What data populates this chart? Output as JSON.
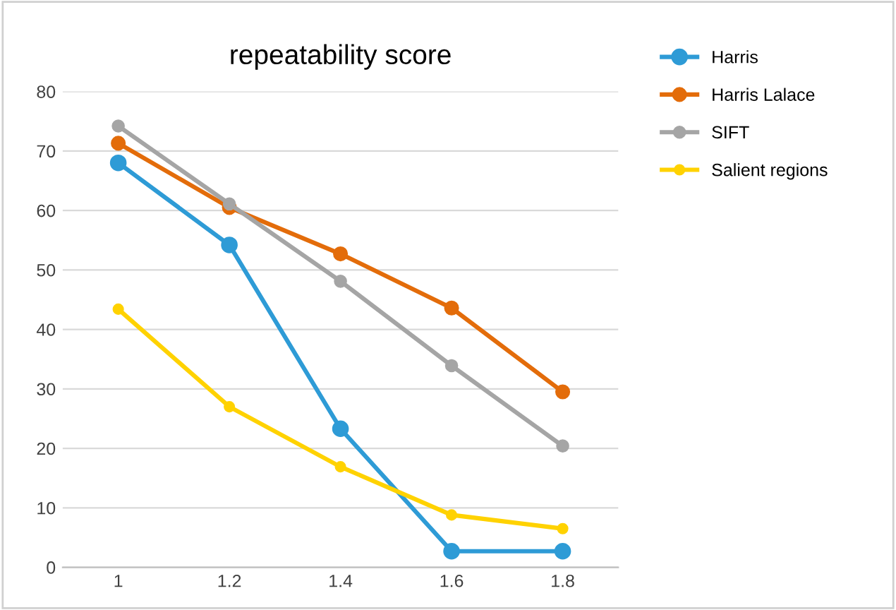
{
  "chart_data": {
    "type": "line",
    "title": "repeatability score",
    "categories": [
      "1",
      "1.2",
      "1.4",
      "1.6",
      "1.8"
    ],
    "series": [
      {
        "name": "Harris",
        "color": "#2e9bd6",
        "values": [
          68,
          54.2,
          23.3,
          2.7,
          2.7
        ]
      },
      {
        "name": "Harris Lalace",
        "color": "#e36c0a",
        "values": [
          71.3,
          60.5,
          52.7,
          43.6,
          29.5
        ]
      },
      {
        "name": "SIFT",
        "color": "#a5a5a5",
        "values": [
          74.2,
          61.1,
          48.1,
          33.9,
          20.4
        ]
      },
      {
        "name": "Salient regions",
        "color": "#ffd200",
        "values": [
          43.4,
          27,
          16.9,
          8.8,
          6.5
        ]
      }
    ],
    "ylim": [
      0,
      80
    ],
    "yticks": [
      0,
      10,
      20,
      30,
      40,
      50,
      60,
      70,
      80
    ],
    "grid": "y",
    "legend": "right",
    "marker": "circle",
    "line_style": "solid"
  }
}
